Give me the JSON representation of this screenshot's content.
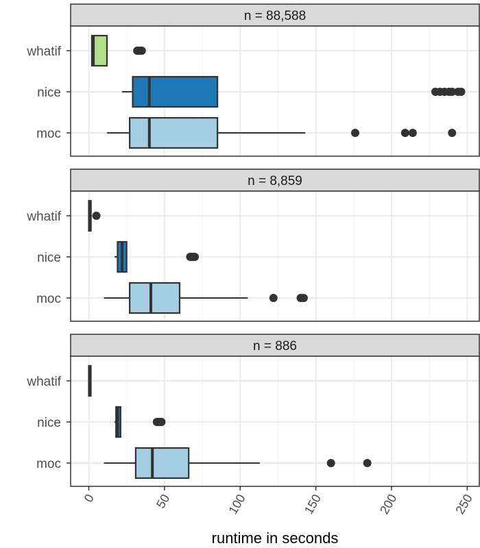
{
  "chart_data": {
    "type": "boxplot",
    "xlabel": "runtime in seconds",
    "xlim": [
      -12,
      258
    ],
    "x_ticks": [
      0,
      50,
      100,
      150,
      200,
      250
    ],
    "x_tick_labels": [
      "0",
      "50",
      "100",
      "150",
      "200",
      "250"
    ],
    "categories": [
      "whatif",
      "nice",
      "moc"
    ],
    "colors": {
      "whatif": "#b2df8a",
      "nice": "#1f78b4",
      "moc": "#a6cee3"
    },
    "panels": [
      {
        "title": "n = 88,588",
        "boxes": [
          {
            "category": "whatif",
            "whisker_low": 2,
            "q1": 2,
            "median": 3,
            "q3": 12,
            "whisker_high": 12,
            "outliers": [
              32,
              33,
              34,
              35
            ]
          },
          {
            "category": "nice",
            "whisker_low": 22,
            "q1": 29,
            "median": 40,
            "q3": 85,
            "whisker_high": 85,
            "outliers": [
              229,
              232,
              235,
              238,
              240,
              244,
              246
            ]
          },
          {
            "category": "moc",
            "whisker_low": 12,
            "q1": 27,
            "median": 40,
            "q3": 85,
            "whisker_high": 143,
            "outliers": [
              176,
              209,
              214,
              240
            ]
          }
        ]
      },
      {
        "title": "n = 8,859",
        "boxes": [
          {
            "category": "whatif",
            "whisker_low": 0,
            "q1": 0,
            "median": 1,
            "q3": 1,
            "whisker_high": 2,
            "outliers": [
              5
            ]
          },
          {
            "category": "nice",
            "whisker_low": 17,
            "q1": 19,
            "median": 22,
            "q3": 25,
            "whisker_high": 25,
            "outliers": [
              67,
              68,
              69,
              70
            ]
          },
          {
            "category": "moc",
            "whisker_low": 10,
            "q1": 27,
            "median": 41,
            "q3": 60,
            "whisker_high": 105,
            "outliers": [
              122,
              140,
              142
            ]
          }
        ]
      },
      {
        "title": "n = 886",
        "boxes": [
          {
            "category": "whatif",
            "whisker_low": 0,
            "q1": 0,
            "median": 0.5,
            "q3": 1,
            "whisker_high": 1,
            "outliers": []
          },
          {
            "category": "nice",
            "whisker_low": 17,
            "q1": 18,
            "median": 19,
            "q3": 21,
            "whisker_high": 21,
            "outliers": [
              45,
              46,
              47,
              48
            ]
          },
          {
            "category": "moc",
            "whisker_low": 10,
            "q1": 31,
            "median": 42,
            "q3": 66,
            "whisker_high": 113,
            "outliers": [
              160,
              184
            ]
          }
        ]
      }
    ],
    "grid": true
  }
}
